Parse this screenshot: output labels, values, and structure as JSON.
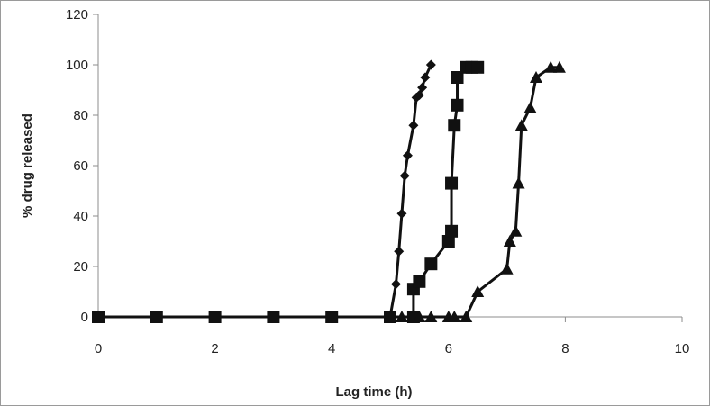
{
  "chart_data": {
    "type": "line",
    "title": "",
    "xlabel": "Lag time (h)",
    "ylabel": "% drug released",
    "xlim": [
      0,
      10
    ],
    "ylim": [
      0,
      120
    ],
    "x_ticks": [
      "0",
      "2",
      "4",
      "6",
      "8",
      "10"
    ],
    "y_ticks": [
      "0",
      "20",
      "40",
      "60",
      "80",
      "100",
      "120"
    ],
    "grid": false,
    "legend": "none",
    "series": [
      {
        "marker": "diamond",
        "color": "#111111",
        "points": [
          [
            0,
            0
          ],
          [
            1,
            0
          ],
          [
            2,
            0
          ],
          [
            3,
            0
          ],
          [
            4,
            0
          ],
          [
            5,
            0
          ],
          [
            5.1,
            13
          ],
          [
            5.15,
            26
          ],
          [
            5.2,
            41
          ],
          [
            5.25,
            56
          ],
          [
            5.3,
            64
          ],
          [
            5.4,
            76
          ],
          [
            5.45,
            87
          ],
          [
            5.5,
            88
          ],
          [
            5.55,
            91
          ],
          [
            5.6,
            95
          ],
          [
            5.7,
            100
          ]
        ]
      },
      {
        "marker": "square",
        "color": "#111111",
        "points": [
          [
            0,
            0
          ],
          [
            1,
            0
          ],
          [
            2,
            0
          ],
          [
            3,
            0
          ],
          [
            4,
            0
          ],
          [
            5,
            0
          ],
          [
            5.4,
            0
          ],
          [
            5.4,
            11
          ],
          [
            5.5,
            14
          ],
          [
            5.7,
            21
          ],
          [
            6.0,
            30
          ],
          [
            6.05,
            34
          ],
          [
            6.05,
            53
          ],
          [
            6.1,
            76
          ],
          [
            6.15,
            84
          ],
          [
            6.15,
            95
          ],
          [
            6.3,
            99
          ],
          [
            6.4,
            99
          ],
          [
            6.5,
            99
          ]
        ]
      },
      {
        "marker": "triangle",
        "color": "#111111",
        "points": [
          [
            5.2,
            0
          ],
          [
            5.5,
            0
          ],
          [
            5.7,
            0
          ],
          [
            6.0,
            0
          ],
          [
            6.1,
            0
          ],
          [
            6.3,
            0
          ],
          [
            6.5,
            10
          ],
          [
            7.0,
            19
          ],
          [
            7.05,
            30
          ],
          [
            7.15,
            34
          ],
          [
            7.2,
            53
          ],
          [
            7.25,
            76
          ],
          [
            7.4,
            83
          ],
          [
            7.5,
            95
          ],
          [
            7.75,
            99
          ],
          [
            7.9,
            99
          ]
        ]
      }
    ]
  }
}
